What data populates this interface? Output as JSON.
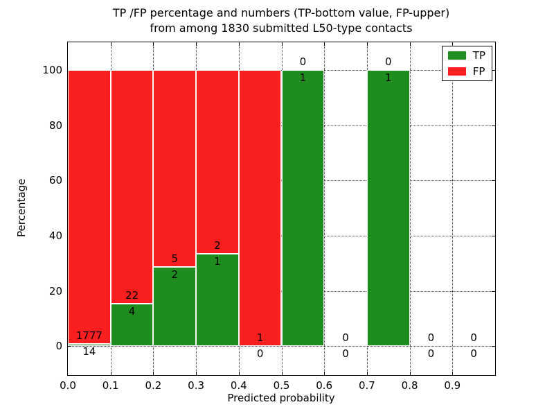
{
  "figure": {
    "title_line1": "TP /FP percentage and numbers (TP-bottom value, FP-upper)",
    "title_line2": "from among 1830 submitted L50-type contacts"
  },
  "chart_data": {
    "type": "bar",
    "stacked": true,
    "normalized": "percent",
    "title": "TP /FP percentage and numbers (TP-bottom value, FP-upper)\nfrom among 1830 submitted L50-type contacts",
    "xlabel": "Predicted probability",
    "ylabel": "Percentage",
    "total_contacts": 1830,
    "xlim": [
      0.0,
      1.0
    ],
    "ylim": [
      -10.5,
      110.0
    ],
    "bin_width": 0.1,
    "xticks": [
      0.0,
      0.1,
      0.2,
      0.3,
      0.4,
      0.5,
      0.6,
      0.7,
      0.8,
      0.9
    ],
    "xtick_labels": [
      "0.0",
      "0.1",
      "0.2",
      "0.3",
      "0.4",
      "0.5",
      "0.6",
      "0.7",
      "0.8",
      "0.9"
    ],
    "yticks": [
      0,
      20,
      40,
      60,
      80,
      100
    ],
    "ytick_labels": [
      "0",
      "20",
      "40",
      "60",
      "80",
      "100"
    ],
    "grid": {
      "visible": true,
      "style": "dotted"
    },
    "categories": [
      "0.0-0.1",
      "0.1-0.2",
      "0.2-0.3",
      "0.3-0.4",
      "0.4-0.5",
      "0.5-0.6",
      "0.6-0.7",
      "0.7-0.8",
      "0.8-0.9",
      "0.9-1.0"
    ],
    "bin_starts": [
      0.0,
      0.1,
      0.2,
      0.3,
      0.4,
      0.5,
      0.6,
      0.7,
      0.8,
      0.9
    ],
    "series": [
      {
        "name": "TP",
        "color": "#1e8c1e",
        "counts": [
          14,
          4,
          2,
          1,
          0,
          1,
          0,
          1,
          0,
          0
        ],
        "percent": [
          0.78,
          15.38,
          28.57,
          33.33,
          0,
          100,
          0,
          100,
          0,
          0
        ]
      },
      {
        "name": "FP",
        "color": "#f91f1f",
        "counts": [
          1777,
          22,
          5,
          2,
          1,
          0,
          0,
          0,
          0,
          0
        ],
        "percent": [
          99.22,
          84.62,
          71.43,
          66.67,
          100,
          0,
          0,
          0,
          0,
          0
        ]
      }
    ],
    "legend": {
      "position": "upper right",
      "entries": [
        "TP",
        "FP"
      ]
    }
  },
  "colors": {
    "tp": "#1e8c1e",
    "fp": "#f91f1f",
    "background": "#ffffff",
    "text": "#000000",
    "grid": "#3a3a3a",
    "bar_edge": "#ffffff",
    "spine": "#000000"
  }
}
